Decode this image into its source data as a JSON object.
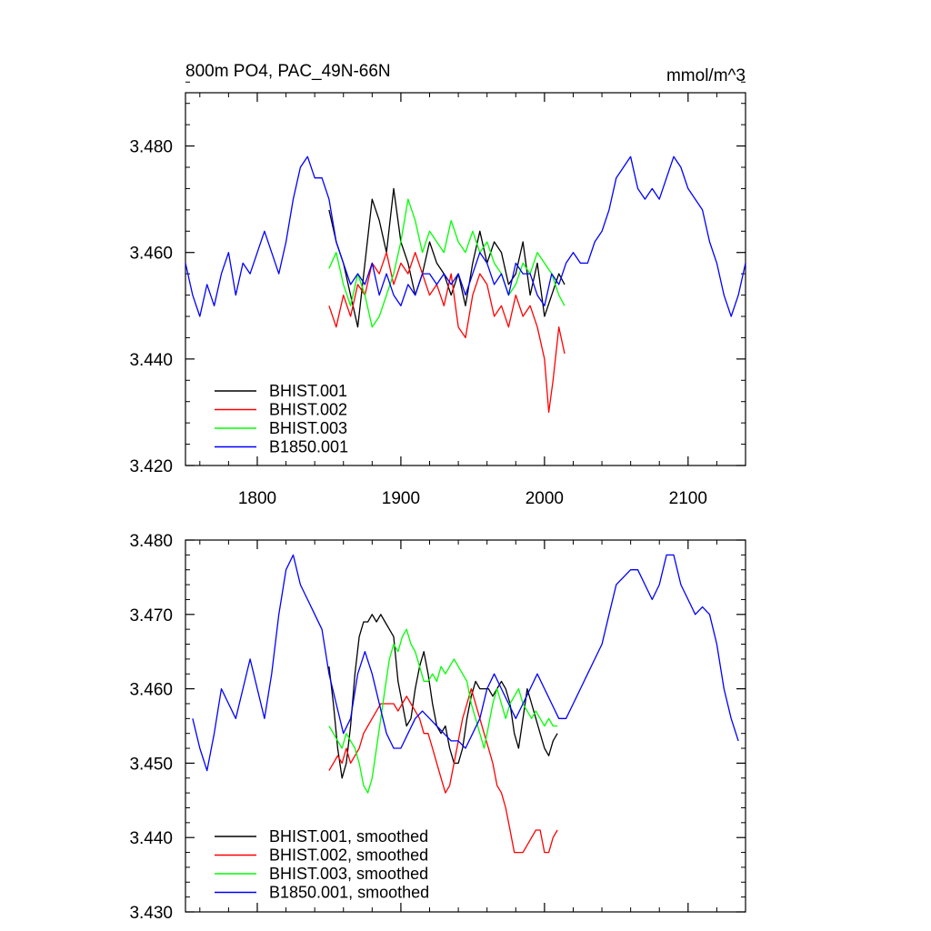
{
  "figure": {
    "title": "800m PO4, PAC_49N-66N",
    "units": "mmol/m^3"
  },
  "chart_data": [
    {
      "type": "line",
      "title": "800m PO4, PAC_49N-66N",
      "units": "mmol/m^3",
      "xlim": [
        1750,
        2140
      ],
      "ylim": [
        3.42,
        3.49
      ],
      "xticks": [
        1800,
        1900,
        2000,
        2100
      ],
      "xtick_labels": [
        "1800",
        "1900",
        "2000",
        "2100"
      ],
      "yticks": [
        3.42,
        3.44,
        3.46,
        3.48
      ],
      "ytick_labels": [
        "3.420",
        "3.440",
        "3.460",
        "3.480"
      ],
      "legend_position": "bottom-left",
      "series": [
        {
          "name": "BHIST.001",
          "color": "#000000",
          "x": [
            1850,
            1855,
            1860,
            1865,
            1870,
            1875,
            1880,
            1885,
            1890,
            1895,
            1900,
            1905,
            1910,
            1915,
            1920,
            1925,
            1930,
            1935,
            1940,
            1945,
            1950,
            1955,
            1960,
            1965,
            1970,
            1975,
            1980,
            1985,
            1990,
            1995,
            2000,
            2005,
            2010,
            2014
          ],
          "y": [
            3.468,
            3.462,
            3.458,
            3.452,
            3.446,
            3.458,
            3.47,
            3.466,
            3.46,
            3.472,
            3.462,
            3.458,
            3.452,
            3.456,
            3.462,
            3.458,
            3.456,
            3.452,
            3.456,
            3.45,
            3.458,
            3.464,
            3.458,
            3.462,
            3.46,
            3.454,
            3.456,
            3.462,
            3.452,
            3.458,
            3.448,
            3.452,
            3.456,
            3.454
          ]
        },
        {
          "name": "BHIST.002",
          "color": "#ff0000",
          "x": [
            1850,
            1855,
            1860,
            1865,
            1870,
            1875,
            1880,
            1885,
            1890,
            1895,
            1900,
            1905,
            1910,
            1915,
            1920,
            1925,
            1930,
            1935,
            1940,
            1945,
            1950,
            1955,
            1960,
            1965,
            1970,
            1975,
            1980,
            1985,
            1990,
            1995,
            2000,
            2003,
            2006,
            2010,
            2014
          ],
          "y": [
            3.45,
            3.446,
            3.452,
            3.448,
            3.454,
            3.452,
            3.458,
            3.456,
            3.46,
            3.454,
            3.458,
            3.456,
            3.46,
            3.456,
            3.452,
            3.454,
            3.45,
            3.456,
            3.446,
            3.444,
            3.452,
            3.456,
            3.454,
            3.448,
            3.45,
            3.446,
            3.452,
            3.448,
            3.45,
            3.446,
            3.44,
            3.43,
            3.436,
            3.446,
            3.441
          ]
        },
        {
          "name": "BHIST.003",
          "color": "#00ff00",
          "x": [
            1850,
            1855,
            1860,
            1865,
            1870,
            1875,
            1880,
            1885,
            1890,
            1895,
            1900,
            1905,
            1910,
            1915,
            1920,
            1925,
            1930,
            1935,
            1940,
            1945,
            1950,
            1955,
            1960,
            1965,
            1970,
            1975,
            1980,
            1985,
            1990,
            1995,
            2000,
            2005,
            2010,
            2014
          ],
          "y": [
            3.457,
            3.46,
            3.454,
            3.45,
            3.456,
            3.452,
            3.446,
            3.448,
            3.452,
            3.456,
            3.462,
            3.47,
            3.466,
            3.46,
            3.464,
            3.462,
            3.46,
            3.466,
            3.462,
            3.46,
            3.464,
            3.46,
            3.462,
            3.458,
            3.456,
            3.452,
            3.454,
            3.458,
            3.456,
            3.46,
            3.458,
            3.456,
            3.452,
            3.45
          ]
        },
        {
          "name": "B1850.001",
          "color": "#0000ff",
          "x": [
            1750,
            1755,
            1760,
            1765,
            1770,
            1775,
            1780,
            1785,
            1790,
            1795,
            1800,
            1805,
            1810,
            1815,
            1820,
            1825,
            1830,
            1835,
            1840,
            1845,
            1850,
            1855,
            1860,
            1865,
            1870,
            1875,
            1880,
            1885,
            1890,
            1895,
            1900,
            1905,
            1910,
            1915,
            1920,
            1925,
            1930,
            1935,
            1940,
            1945,
            1950,
            1955,
            1960,
            1965,
            1970,
            1975,
            1980,
            1985,
            1990,
            1995,
            2000,
            2005,
            2010,
            2015,
            2020,
            2025,
            2030,
            2035,
            2040,
            2045,
            2050,
            2055,
            2060,
            2065,
            2070,
            2075,
            2080,
            2085,
            2090,
            2095,
            2100,
            2105,
            2110,
            2115,
            2120,
            2125,
            2130,
            2135,
            2140
          ],
          "y": [
            3.458,
            3.452,
            3.448,
            3.454,
            3.45,
            3.456,
            3.46,
            3.452,
            3.458,
            3.456,
            3.46,
            3.464,
            3.46,
            3.456,
            3.462,
            3.47,
            3.476,
            3.478,
            3.474,
            3.474,
            3.47,
            3.462,
            3.458,
            3.454,
            3.456,
            3.454,
            3.458,
            3.452,
            3.456,
            3.452,
            3.45,
            3.454,
            3.452,
            3.456,
            3.456,
            3.454,
            3.456,
            3.454,
            3.456,
            3.452,
            3.456,
            3.46,
            3.458,
            3.454,
            3.456,
            3.452,
            3.458,
            3.456,
            3.456,
            3.452,
            3.45,
            3.456,
            3.454,
            3.458,
            3.46,
            3.458,
            3.458,
            3.462,
            3.464,
            3.468,
            3.474,
            3.476,
            3.478,
            3.472,
            3.47,
            3.472,
            3.47,
            3.474,
            3.478,
            3.476,
            3.472,
            3.47,
            3.468,
            3.462,
            3.458,
            3.452,
            3.448,
            3.452,
            3.458
          ]
        }
      ]
    },
    {
      "type": "line",
      "xlim": [
        1750,
        2140
      ],
      "ylim": [
        3.43,
        3.48
      ],
      "xticks": [
        1800,
        1900,
        2000,
        2100
      ],
      "xtick_labels": [],
      "yticks": [
        3.43,
        3.44,
        3.45,
        3.46,
        3.47,
        3.48
      ],
      "ytick_labels": [
        "3.430",
        "3.440",
        "3.450",
        "3.460",
        "3.470",
        "3.480"
      ],
      "legend_position": "bottom-left",
      "series": [
        {
          "name": "BHIST.001, smoothed",
          "color": "#000000",
          "x": [
            1850,
            1853,
            1856,
            1859,
            1862,
            1865,
            1868,
            1871,
            1874,
            1877,
            1880,
            1883,
            1886,
            1889,
            1892,
            1895,
            1898,
            1901,
            1904,
            1907,
            1910,
            1913,
            1916,
            1919,
            1922,
            1925,
            1928,
            1931,
            1934,
            1937,
            1940,
            1943,
            1946,
            1949,
            1952,
            1955,
            1958,
            1961,
            1964,
            1967,
            1970,
            1973,
            1976,
            1979,
            1982,
            1985,
            1988,
            1991,
            1994,
            1997,
            2000,
            2003,
            2006,
            2009
          ],
          "y": [
            3.463,
            3.458,
            3.452,
            3.448,
            3.45,
            3.455,
            3.462,
            3.467,
            3.469,
            3.469,
            3.47,
            3.469,
            3.47,
            3.469,
            3.468,
            3.467,
            3.461,
            3.458,
            3.455,
            3.456,
            3.46,
            3.463,
            3.465,
            3.462,
            3.458,
            3.455,
            3.454,
            3.455,
            3.452,
            3.45,
            3.45,
            3.452,
            3.456,
            3.459,
            3.461,
            3.46,
            3.46,
            3.46,
            3.459,
            3.46,
            3.461,
            3.46,
            3.458,
            3.454,
            3.452,
            3.456,
            3.46,
            3.458,
            3.456,
            3.454,
            3.452,
            3.451,
            3.453,
            3.454
          ]
        },
        {
          "name": "BHIST.002, smoothed",
          "color": "#ff0000",
          "x": [
            1850,
            1853,
            1856,
            1859,
            1862,
            1865,
            1868,
            1871,
            1874,
            1877,
            1880,
            1883,
            1886,
            1889,
            1892,
            1895,
            1898,
            1901,
            1904,
            1907,
            1910,
            1913,
            1916,
            1919,
            1922,
            1925,
            1928,
            1931,
            1934,
            1937,
            1940,
            1943,
            1946,
            1949,
            1952,
            1955,
            1958,
            1961,
            1964,
            1967,
            1970,
            1973,
            1976,
            1979,
            1982,
            1985,
            1988,
            1991,
            1994,
            1997,
            2000,
            2003,
            2006,
            2009
          ],
          "y": [
            3.449,
            3.45,
            3.451,
            3.45,
            3.452,
            3.45,
            3.451,
            3.452,
            3.454,
            3.455,
            3.456,
            3.457,
            3.458,
            3.458,
            3.458,
            3.458,
            3.457,
            3.458,
            3.459,
            3.458,
            3.457,
            3.456,
            3.454,
            3.454,
            3.452,
            3.45,
            3.448,
            3.446,
            3.447,
            3.45,
            3.453,
            3.456,
            3.458,
            3.46,
            3.458,
            3.456,
            3.454,
            3.452,
            3.45,
            3.447,
            3.446,
            3.444,
            3.441,
            3.438,
            3.438,
            3.438,
            3.439,
            3.44,
            3.441,
            3.441,
            3.438,
            3.438,
            3.44,
            3.441
          ]
        },
        {
          "name": "BHIST.003, smoothed",
          "color": "#00ff00",
          "x": [
            1850,
            1853,
            1856,
            1859,
            1862,
            1865,
            1868,
            1871,
            1874,
            1877,
            1880,
            1883,
            1886,
            1889,
            1892,
            1895,
            1898,
            1901,
            1904,
            1907,
            1910,
            1913,
            1916,
            1919,
            1922,
            1925,
            1928,
            1931,
            1934,
            1937,
            1940,
            1943,
            1946,
            1949,
            1952,
            1955,
            1958,
            1961,
            1964,
            1967,
            1970,
            1973,
            1976,
            1979,
            1982,
            1985,
            1988,
            1991,
            1994,
            1997,
            2000,
            2003,
            2006,
            2009
          ],
          "y": [
            3.455,
            3.454,
            3.453,
            3.452,
            3.454,
            3.453,
            3.452,
            3.45,
            3.447,
            3.446,
            3.448,
            3.452,
            3.456,
            3.46,
            3.464,
            3.466,
            3.465,
            3.467,
            3.468,
            3.466,
            3.465,
            3.463,
            3.461,
            3.461,
            3.462,
            3.461,
            3.463,
            3.462,
            3.463,
            3.464,
            3.463,
            3.462,
            3.461,
            3.458,
            3.456,
            3.454,
            3.452,
            3.455,
            3.458,
            3.46,
            3.458,
            3.456,
            3.458,
            3.459,
            3.46,
            3.458,
            3.457,
            3.456,
            3.457,
            3.456,
            3.455,
            3.456,
            3.455,
            3.455
          ]
        },
        {
          "name": "B1850.001, smoothed",
          "color": "#0000ff",
          "x": [
            1755,
            1760,
            1765,
            1770,
            1775,
            1780,
            1785,
            1790,
            1795,
            1800,
            1805,
            1810,
            1815,
            1820,
            1825,
            1830,
            1835,
            1840,
            1845,
            1850,
            1855,
            1860,
            1865,
            1870,
            1875,
            1880,
            1885,
            1890,
            1895,
            1900,
            1905,
            1910,
            1915,
            1920,
            1925,
            1930,
            1935,
            1940,
            1945,
            1950,
            1955,
            1960,
            1965,
            1970,
            1975,
            1980,
            1985,
            1990,
            1995,
            2000,
            2005,
            2010,
            2015,
            2020,
            2025,
            2030,
            2035,
            2040,
            2045,
            2050,
            2055,
            2060,
            2065,
            2070,
            2075,
            2080,
            2085,
            2090,
            2095,
            2100,
            2105,
            2110,
            2115,
            2120,
            2125,
            2130,
            2135
          ],
          "y": [
            3.456,
            3.452,
            3.449,
            3.454,
            3.46,
            3.458,
            3.456,
            3.46,
            3.464,
            3.46,
            3.456,
            3.462,
            3.47,
            3.476,
            3.478,
            3.474,
            3.472,
            3.47,
            3.468,
            3.462,
            3.458,
            3.454,
            3.456,
            3.462,
            3.465,
            3.462,
            3.458,
            3.454,
            3.452,
            3.452,
            3.454,
            3.456,
            3.457,
            3.456,
            3.455,
            3.454,
            3.453,
            3.453,
            3.452,
            3.454,
            3.456,
            3.46,
            3.462,
            3.46,
            3.458,
            3.456,
            3.458,
            3.46,
            3.462,
            3.46,
            3.458,
            3.456,
            3.456,
            3.458,
            3.46,
            3.462,
            3.464,
            3.466,
            3.47,
            3.474,
            3.475,
            3.476,
            3.476,
            3.474,
            3.472,
            3.474,
            3.478,
            3.478,
            3.474,
            3.472,
            3.47,
            3.471,
            3.47,
            3.466,
            3.46,
            3.456,
            3.453
          ]
        }
      ]
    }
  ]
}
